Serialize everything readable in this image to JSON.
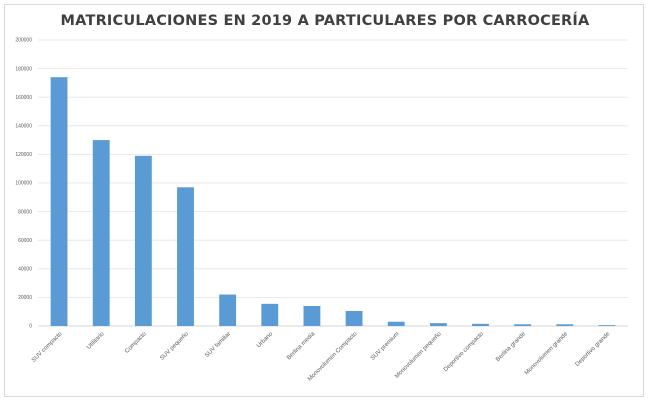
{
  "chart_data": {
    "type": "bar",
    "title": "MATRICULACIONES EN 2019 A PARTICULARES POR CARROCERÍA",
    "xlabel": "",
    "ylabel": "",
    "categories": [
      "SUV compacto",
      "Utilitario",
      "Compacto",
      "SUV pequeño",
      "SUV familiar",
      "Urbano",
      "Berlina media",
      "Monovolumen Compacto",
      "SUV premium",
      "Monovolumen pequeño",
      "Deportivo compacto",
      "Berlina grande",
      "Monovolumen grande",
      "Deportivo grande"
    ],
    "values": [
      174000,
      130000,
      119000,
      97000,
      22000,
      15500,
      14000,
      10500,
      3000,
      2000,
      1500,
      1200,
      1200,
      600
    ],
    "ylim": [
      0,
      200000
    ],
    "yticks": [
      0,
      20000,
      40000,
      60000,
      80000,
      100000,
      120000,
      140000,
      160000,
      180000,
      200000
    ],
    "grid": true,
    "legend": "none",
    "bar_color": "#5b9bd5"
  }
}
